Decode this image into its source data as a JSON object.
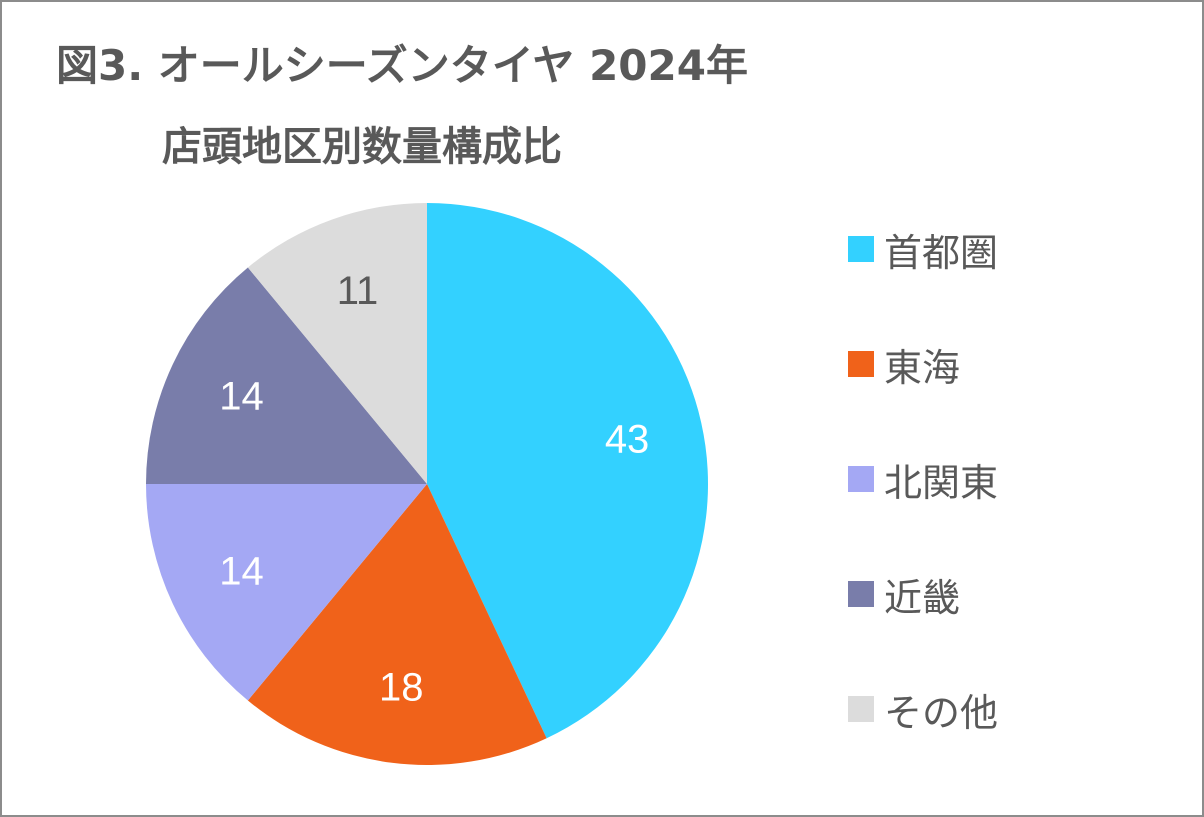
{
  "chart_data": {
    "type": "pie",
    "title_line1": "図3. オールシーズンタイヤ 2024年",
    "title_line2": "店頭地区別数量構成比",
    "categories": [
      "首都圏",
      "東海",
      "北関東",
      "近畿",
      "その他"
    ],
    "values": [
      43,
      18,
      14,
      14,
      11
    ],
    "colors": [
      "#33D1FF",
      "#F0621A",
      "#A4A8F4",
      "#797DAA",
      "#DCDCDC"
    ],
    "label_colors": [
      "#ffffff",
      "#ffffff",
      "#ffffff",
      "#ffffff",
      "#595959"
    ],
    "legend_position": "right",
    "start_angle": "12 o'clock",
    "direction": "clockwise"
  }
}
